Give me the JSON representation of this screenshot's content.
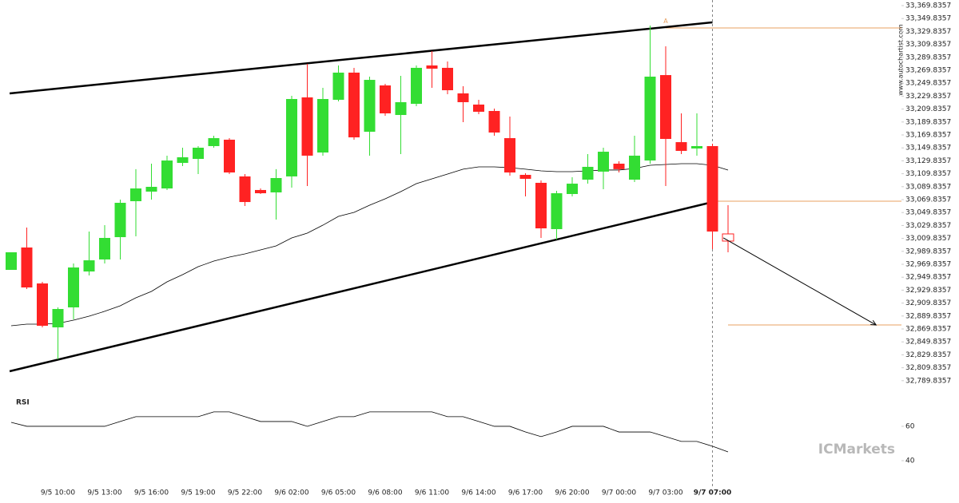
{
  "chart_data": {
    "type": "candlestick",
    "categories": [
      null,
      null,
      null,
      "9/5 10:00",
      null,
      null,
      "9/5 13:00",
      null,
      null,
      "9/5 16:00",
      null,
      null,
      "9/5 19:00",
      null,
      null,
      "9/5 22:00",
      null,
      null,
      "9/6 02:00",
      null,
      null,
      "9/6 05:00",
      null,
      null,
      "9/6 08:00",
      null,
      null,
      "9/6 11:00",
      null,
      null,
      "9/6 14:00",
      null,
      null,
      "9/6 17:00",
      null,
      null,
      "9/6 20:00",
      null,
      null,
      "9/7 00:00",
      null,
      null,
      "9/7 03:00",
      null,
      null,
      "9/7 07:00",
      null
    ],
    "open": [
      32961.2,
      32995.8,
      32940.2,
      32872.3,
      32903.2,
      32958.7,
      32977.3,
      33011.8,
      33067.4,
      33082.2,
      33087.1,
      33126.6,
      33132.8,
      33152.6,
      33162.5,
      33105.7,
      33084.7,
      33081.0,
      33105.7,
      33227.9,
      33142.7,
      33224.2,
      33266.2,
      33174.8,
      33246.4,
      33200.7,
      33218.0,
      33277.3,
      33273.6,
      33234.1,
      33216.8,
      33206.9,
      33164.9,
      33108.1,
      33095.8,
      33024.2,
      33078.5,
      33100.7,
      33113.1,
      33125.4,
      33100.7,
      33130.3,
      33262.4,
      33158.7,
      33148.9,
      33152.6,
      33016.8
    ],
    "high": [
      32988.4,
      33026.6,
      32942.7,
      32903.2,
      32971.1,
      33020.5,
      33030.3,
      33069.9,
      33116.9,
      33125.4,
      33137.8,
      33150.1,
      33152.6,
      33168.6,
      33164.9,
      33109.4,
      33087.1,
      33116.9,
      33230.4,
      33279.7,
      33242.7,
      33277.3,
      33273.6,
      33260.0,
      33248.9,
      33261.2,
      33277.3,
      33299.5,
      33283.4,
      33245.2,
      33224.2,
      33210.6,
      33198.3,
      33110.6,
      33099.5,
      33083.4,
      33104.4,
      33140.2,
      33150.1,
      33129.1,
      33168.6,
      33339.0,
      33306.9,
      33203.2,
      33203.2,
      33156.3,
      33061.2
    ],
    "low": [
      32961.2,
      32931.6,
      32872.3,
      32822.9,
      32884.7,
      32952.6,
      32971.1,
      32977.3,
      33013.1,
      33069.9,
      33084.7,
      33121.7,
      33109.4,
      33150.1,
      33109.4,
      33060.0,
      33078.5,
      33039.0,
      33088.4,
      33090.8,
      33137.8,
      33221.7,
      33162.5,
      33137.8,
      33199.5,
      33140.2,
      33214.3,
      33242.7,
      33232.8,
      33189.6,
      33202.0,
      33168.6,
      33106.9,
      33074.8,
      33010.6,
      33008.1,
      33074.8,
      33094.5,
      33085.9,
      33111.8,
      33097.0,
      33125.4,
      33090.8,
      33140.2,
      33137.8,
      32993.3,
      32988.4
    ],
    "close": [
      32988.4,
      32934.0,
      32874.8,
      32900.7,
      32964.9,
      32976.0,
      33010.6,
      33064.9,
      33087.1,
      33089.6,
      33130.3,
      33135.3,
      33150.1,
      33164.9,
      33111.8,
      33066.1,
      33079.7,
      33103.2,
      33225.4,
      33137.8,
      33225.4,
      33266.2,
      33166.1,
      33255.0,
      33203.2,
      33220.5,
      33273.6,
      33272.3,
      33239.0,
      33220.5,
      33205.7,
      33173.6,
      33111.8,
      33102.0,
      33025.4,
      33079.7,
      33094.5,
      33120.5,
      33143.9,
      33116.9,
      33137.8,
      33260.0,
      33163.7,
      33145.2,
      33152.6,
      33020.5,
      33005.7
    ],
    "up_color": "#33dd33",
    "down_color": "#ff2222",
    "ma": [
      32874.8,
      32877.3,
      32877.3,
      32878.5,
      32883.4,
      32889.6,
      32897.1,
      32905.7,
      32918.0,
      32927.9,
      32942.7,
      32953.8,
      32966.1,
      32974.8,
      32981.0,
      32985.9,
      32992.1,
      32998.3,
      33010.6,
      33018.0,
      33030.3,
      33043.9,
      33050.1,
      33061.2,
      33071.1,
      33082.2,
      33094.5,
      33102.0,
      33109.4,
      33116.9,
      33120.5,
      33120.5,
      33119.2,
      33116.9,
      33114.3,
      33113.1,
      33113.1,
      33114.3,
      33115.6,
      33115.6,
      33118.0,
      33122.9,
      33124.2,
      33125.4,
      33125.4,
      33122.9,
      33115.6
    ],
    "channel": [
      {
        "x": [
          -0.1,
          45
        ],
        "values": [
          33234.1,
          33343.9
        ]
      },
      {
        "x": [
          -0.1,
          45
        ],
        "values": [
          32804.4,
          33066.1
        ]
      }
    ],
    "levels": [
      {
        "from": 42,
        "value": 33335.3
      },
      {
        "from": 45,
        "value": 33067.4
      },
      {
        "from": 46,
        "value": 32876.0
      }
    ],
    "level_color": "#e8a060",
    "forecast": {
      "x": [
        45.7,
        55.5
      ],
      "values": [
        33010.6,
        32876.0
      ]
    },
    "annotation": {
      "text": "A",
      "x": 42,
      "value": 33342.0
    },
    "ylim": [
      32785.9,
      33378.5
    ],
    "yticks": [
      {
        "value": 33369.8357,
        "label": "33,369.8357"
      },
      {
        "value": 33349.8357,
        "label": "33,349.8357"
      },
      {
        "value": 33329.8357,
        "label": "33,329.8357"
      },
      {
        "value": 33309.8357,
        "label": "33,309.8357"
      },
      {
        "value": 33289.8357,
        "label": "33,289.8357"
      },
      {
        "value": 33269.8357,
        "label": "33,269.8357"
      },
      {
        "value": 33249.8357,
        "label": "33,249.8357"
      },
      {
        "value": 33229.8357,
        "label": "33,229.8357"
      },
      {
        "value": 33209.8357,
        "label": "33,209.8357"
      },
      {
        "value": 33189.8357,
        "label": "33,189.8357"
      },
      {
        "value": 33169.8357,
        "label": "33,169.8357"
      },
      {
        "value": 33149.8357,
        "label": "33,149.8357"
      },
      {
        "value": 33129.8357,
        "label": "33,129.8357"
      },
      {
        "value": 33109.8357,
        "label": "33,109.8357"
      },
      {
        "value": 33089.8357,
        "label": "33,089.8357"
      },
      {
        "value": 33069.8357,
        "label": "33,069.8357"
      },
      {
        "value": 33049.8357,
        "label": "33,049.8357"
      },
      {
        "value": 33029.8357,
        "label": "33,029.8357"
      },
      {
        "value": 33009.8357,
        "label": "33,009.8357"
      },
      {
        "value": 32989.8357,
        "label": "32,989.8357"
      },
      {
        "value": 32969.8357,
        "label": "32,969.8357"
      },
      {
        "value": 32949.8357,
        "label": "32,949.8357"
      },
      {
        "value": 32929.8357,
        "label": "32,929.8357"
      },
      {
        "value": 32909.8357,
        "label": "32,909.8357"
      },
      {
        "value": 32889.8357,
        "label": "32,889.8357"
      },
      {
        "value": 32869.8357,
        "label": "32,869.8357"
      },
      {
        "value": 32849.8357,
        "label": "32,849.8357"
      },
      {
        "value": 32829.8357,
        "label": "32,829.8357"
      },
      {
        "value": 32809.8357,
        "label": "32,809.8357"
      },
      {
        "value": 32789.8357,
        "label": "32,789.8357"
      }
    ],
    "rsi": {
      "label": "RSI",
      "values": [
        62.3,
        60,
        60,
        60,
        60,
        60,
        60,
        62.8,
        65.6,
        65.6,
        65.6,
        65.6,
        65.6,
        68.4,
        68.4,
        65.6,
        62.8,
        62.8,
        62.8,
        60,
        62.8,
        65.6,
        65.6,
        68.4,
        68.4,
        68.4,
        68.4,
        68.4,
        65.6,
        65.6,
        62.8,
        60,
        60,
        56.7,
        54.0,
        56.7,
        60,
        60,
        60,
        56.7,
        56.7,
        56.7,
        54.0,
        51.2,
        51.2,
        48.4,
        45.1
      ],
      "ylim": [
        29.3,
        78.1
      ],
      "yticks": [
        60,
        40
      ]
    },
    "watermark": "www.autochartist.com",
    "brand": "ICMarkets"
  }
}
